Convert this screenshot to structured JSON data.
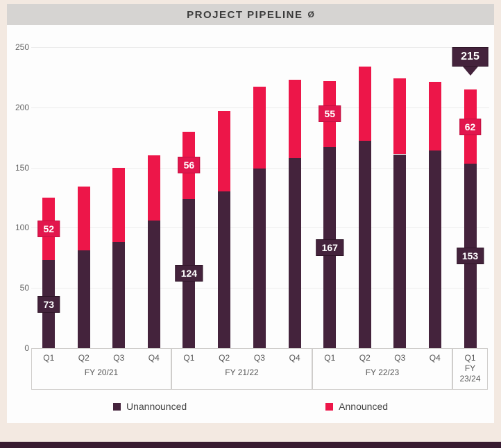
{
  "header": {
    "title": "PROJECT PIPELINE"
  },
  "icons": {
    "title_badge_glyph": "Ø",
    "legend_swatch": "square"
  },
  "colors": {
    "page_bg": "#f3e9e1",
    "panel_bg": "#fdfdfd",
    "header_bg": "#d6d4d2",
    "unannounced": "#44233c",
    "announced": "#ed1649",
    "announced_label_bg": "#e2164d",
    "unannounced_label_bg": "#44233c",
    "grid": "#ececec",
    "axis_text": "#666666",
    "bottom_bar": "#381b31"
  },
  "chart_data": {
    "type": "bar",
    "stacked": true,
    "title": "PROJECT PIPELINE",
    "ylabel": "",
    "xlabel": "",
    "ylim": [
      0,
      250
    ],
    "yticks": [
      0,
      50,
      100,
      150,
      200,
      250
    ],
    "grid": true,
    "legend_position": "bottom",
    "series": [
      {
        "name": "Unannounced",
        "color": "#44233c"
      },
      {
        "name": "Announced",
        "color": "#ed1649"
      }
    ],
    "groups": [
      {
        "label": "FY 20/21",
        "bars": [
          {
            "quarter": "Q1",
            "unannounced": 73,
            "announced": 52,
            "show_labels": true
          },
          {
            "quarter": "Q2",
            "unannounced": 81,
            "announced": 53
          },
          {
            "quarter": "Q3",
            "unannounced": 88,
            "announced": 62
          },
          {
            "quarter": "Q4",
            "unannounced": 106,
            "announced": 54
          }
        ]
      },
      {
        "label": "FY 21/22",
        "bars": [
          {
            "quarter": "Q1",
            "unannounced": 124,
            "announced": 56,
            "show_labels": true
          },
          {
            "quarter": "Q2",
            "unannounced": 130,
            "announced": 67
          },
          {
            "quarter": "Q3",
            "unannounced": 149,
            "announced": 68
          },
          {
            "quarter": "Q4",
            "unannounced": 158,
            "announced": 65
          }
        ]
      },
      {
        "label": "FY 22/23",
        "bars": [
          {
            "quarter": "Q1",
            "unannounced": 167,
            "announced": 55,
            "show_labels": true
          },
          {
            "quarter": "Q2",
            "unannounced": 172,
            "announced": 62
          },
          {
            "quarter": "Q3",
            "unannounced": 161,
            "announced": 63
          },
          {
            "quarter": "Q4",
            "unannounced": 164,
            "announced": 57
          }
        ]
      },
      {
        "label": "FY\n23/24",
        "bars": [
          {
            "quarter": "Q1",
            "unannounced": 153,
            "announced": 62,
            "show_labels": true,
            "total_callout": 215
          }
        ]
      }
    ]
  }
}
